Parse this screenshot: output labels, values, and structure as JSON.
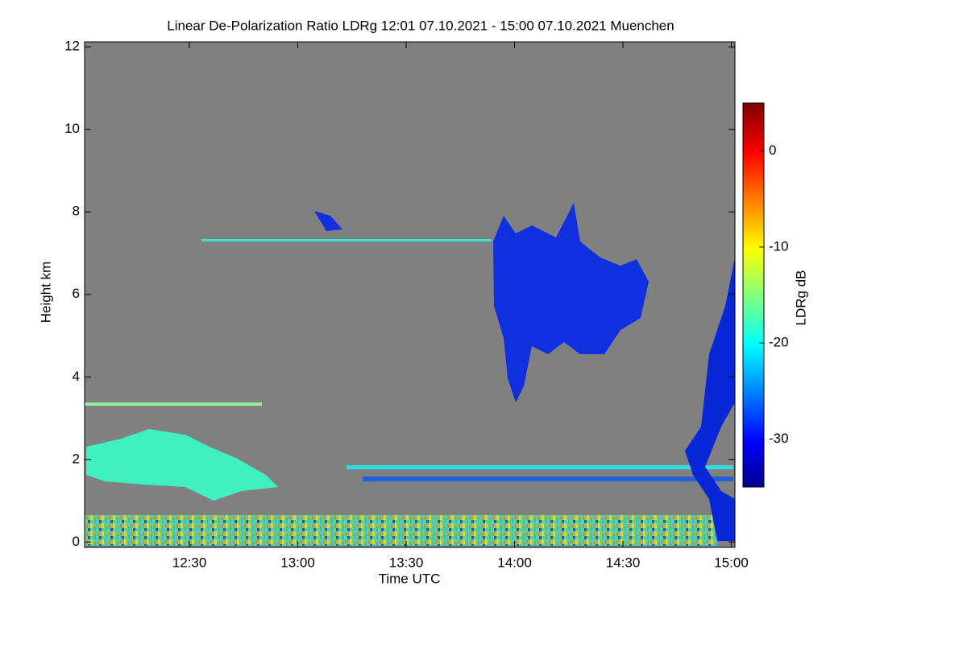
{
  "chart_data": {
    "type": "heatmap",
    "title": "Linear De-Polarization Ratio LDRg   12:01 07.10.2021 - 15:00 07.10.2021 Muenchen",
    "xlabel": "Time UTC",
    "ylabel": "Height km",
    "xlim": [
      721,
      901
    ],
    "xticks": [
      {
        "value": 750,
        "label": "12:30"
      },
      {
        "value": 780,
        "label": "13:00"
      },
      {
        "value": 810,
        "label": "13:30"
      },
      {
        "value": 840,
        "label": "14:00"
      },
      {
        "value": 870,
        "label": "14:30"
      },
      {
        "value": 900,
        "label": "15:00"
      }
    ],
    "ylim": [
      -0.13,
      12.12
    ],
    "yticks": [
      0,
      2,
      4,
      6,
      8,
      10,
      12
    ],
    "colorbar": {
      "label": "LDRg dB",
      "lim": [
        -35,
        5
      ],
      "ticks": [
        0,
        -10,
        -20,
        -30
      ],
      "colormap": "jet"
    },
    "background": "#808080"
  }
}
